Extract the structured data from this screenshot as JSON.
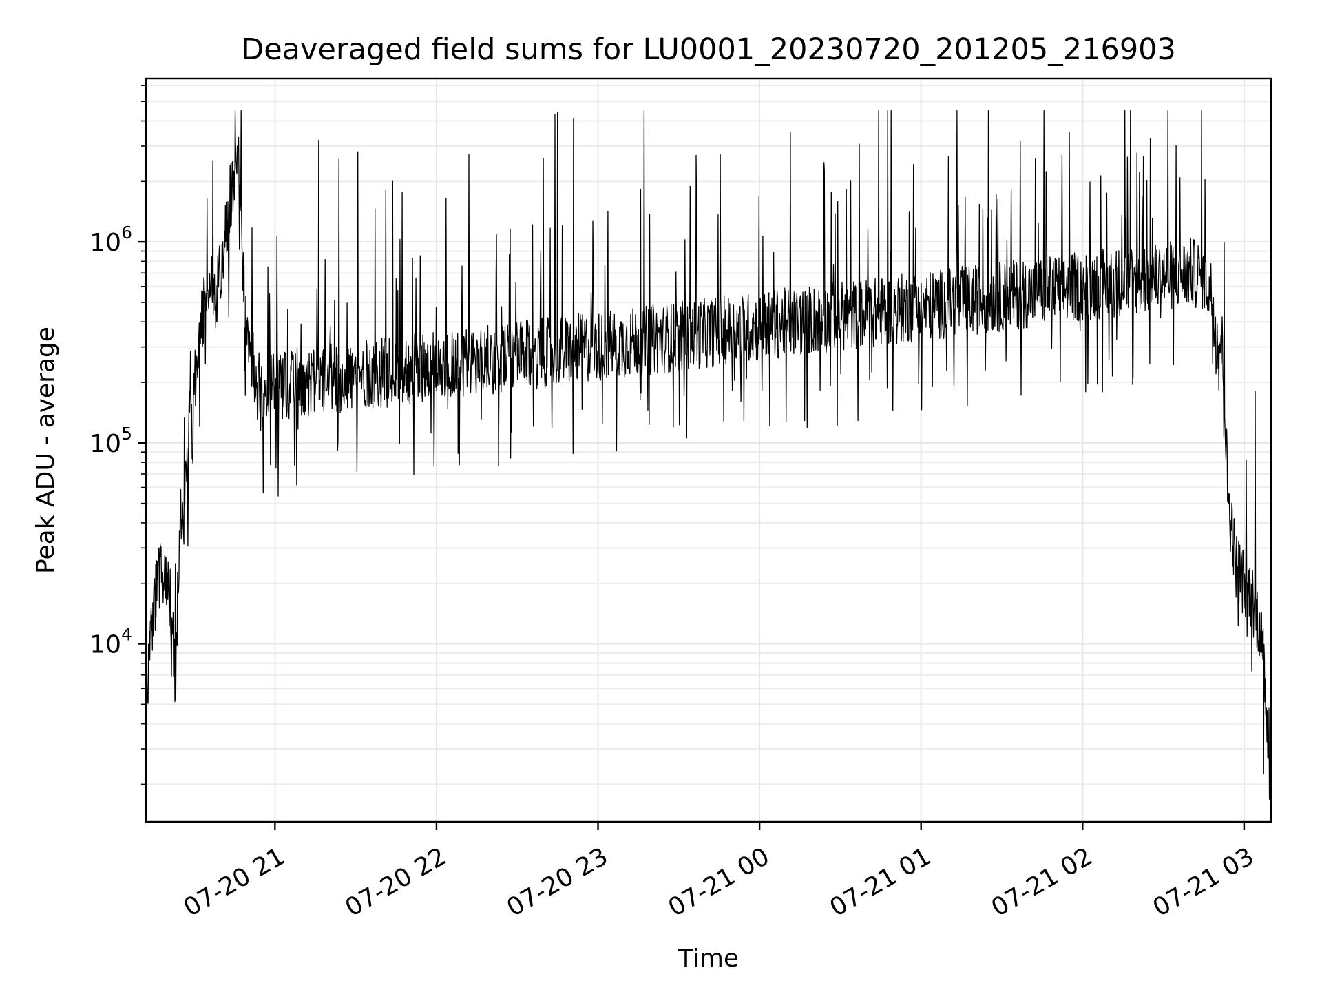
{
  "chart_data": {
    "type": "line",
    "title": "Deaveraged field sums for LU0001_20230720_201205_216903",
    "xlabel": "Time",
    "ylabel": "Peak ADU - average",
    "yscale": "log",
    "ylim": [
      1300,
      6500000
    ],
    "xlim": [
      "2023-07-20 20:12:05",
      "2023-07-21 03:10:00"
    ],
    "x_ticks": [
      {
        "value": "2023-07-20 21:00",
        "label": "07-20 21"
      },
      {
        "value": "2023-07-20 22:00",
        "label": "07-20 22"
      },
      {
        "value": "2023-07-20 23:00",
        "label": "07-20 23"
      },
      {
        "value": "2023-07-21 00:00",
        "label": "07-21 00"
      },
      {
        "value": "2023-07-21 01:00",
        "label": "07-21 01"
      },
      {
        "value": "2023-07-21 02:00",
        "label": "07-21 02"
      },
      {
        "value": "2023-07-21 03:00",
        "label": "07-21 03"
      }
    ],
    "y_ticks": [
      {
        "value": 10000,
        "base": "10",
        "exp": "4"
      },
      {
        "value": 100000,
        "base": "10",
        "exp": "5"
      },
      {
        "value": 1000000,
        "base": "10",
        "exp": "6"
      }
    ],
    "grid": true,
    "line_color": "#000000",
    "series": [
      {
        "x": [
          "2023-07-20 20:12:05",
          "2023-07-20 20:14:00",
          "2023-07-20 20:16:00",
          "2023-07-20 20:18:00",
          "2023-07-20 20:20:00",
          "2023-07-20 20:22:00",
          "2023-07-20 20:23:00",
          "2023-07-20 20:24:00",
          "2023-07-20 20:25:00",
          "2023-07-20 20:26:00",
          "2023-07-20 20:27:00",
          "2023-07-20 20:28:00",
          "2023-07-20 20:30:00",
          "2023-07-20 20:32:00",
          "2023-07-20 20:34:00",
          "2023-07-20 20:36:00",
          "2023-07-20 20:38:00",
          "2023-07-20 20:40:00",
          "2023-07-20 20:43:00",
          "2023-07-20 20:46:00",
          "2023-07-20 20:49:00",
          "2023-07-20 20:51:00",
          "2023-07-20 20:53:00",
          "2023-07-20 20:55:00",
          "2023-07-20 20:58:00",
          "2023-07-21 02:40:00",
          "2023-07-21 02:45:00",
          "2023-07-21 02:48:00",
          "2023-07-21 02:50:00",
          "2023-07-21 02:52:00",
          "2023-07-21 02:54:00",
          "2023-07-21 02:57:00",
          "2023-07-21 03:00:00",
          "2023-07-21 03:03:00",
          "2023-07-21 03:06:00",
          "2023-07-21 03:08:00",
          "2023-07-21 03:10:00"
        ],
        "y": [
          5000,
          12000,
          18000,
          24000,
          22000,
          12000,
          7000,
          20000,
          45000,
          40000,
          60000,
          120000,
          200000,
          320000,
          550000,
          650000,
          550000,
          700000,
          1500000,
          3000000,
          450000,
          300000,
          200000,
          180000,
          190000,
          700000,
          680000,
          550000,
          330000,
          300000,
          55000,
          25000,
          20000,
          17000,
          12000,
          6000,
          1500
        ]
      }
    ]
  }
}
